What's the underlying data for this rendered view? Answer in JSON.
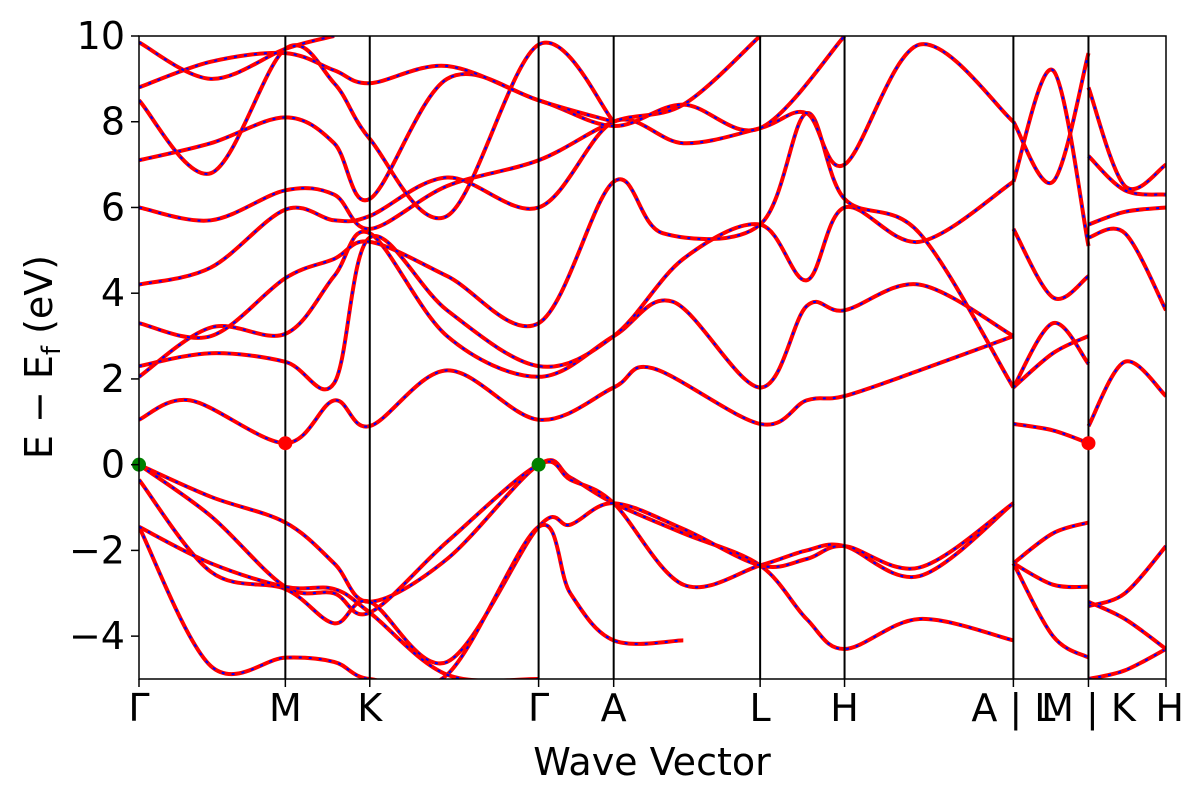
{
  "chart_data": {
    "type": "line",
    "title": "",
    "xlabel": "Wave Vector",
    "ylabel": "E − E_f (eV)",
    "ylabel_main": "E − E",
    "ylabel_sub": "f",
    "ylabel_unit": " (eV)",
    "ylim": [
      -5,
      10
    ],
    "xlim": [
      0,
      1
    ],
    "y_ticks": [
      -4,
      -2,
      0,
      2,
      4,
      6,
      8,
      10
    ],
    "y_tick_labels": [
      "−4",
      "−2",
      "0",
      "2",
      "4",
      "6",
      "8",
      "10"
    ],
    "grid": false,
    "legend": "none",
    "high_symmetry_points": [
      {
        "label": "Γ",
        "x": 0.0
      },
      {
        "label": "M",
        "x": 0.1425
      },
      {
        "label": "K",
        "x": 0.2247
      },
      {
        "label": "Γ",
        "x": 0.3891
      },
      {
        "label": "A",
        "x": 0.4622
      },
      {
        "label": "L",
        "x": 0.6048
      },
      {
        "label": "H",
        "x": 0.687
      },
      {
        "label": "A | L",
        "x": 0.8514
      },
      {
        "label": "M | K",
        "x": 0.9245
      },
      {
        "label": "H",
        "x": 1.0
      }
    ],
    "highlight_points": [
      {
        "x": 0.0,
        "y": 0.0,
        "color": "#008000"
      },
      {
        "x": 0.3891,
        "y": 0.0,
        "color": "#008000"
      },
      {
        "x": 0.1425,
        "y": 0.5,
        "color": "#ff0000"
      },
      {
        "x": 0.9245,
        "y": 0.5,
        "color": "#ff0000"
      }
    ],
    "series_style": {
      "line_color": "#ff0000",
      "dash_color": "#0000ff"
    },
    "series": [
      {
        "points": [
          [
            0.0,
            0.0
          ],
          [
            0.07,
            -0.75
          ],
          [
            0.1425,
            -1.35
          ],
          [
            0.19,
            -2.3
          ],
          [
            0.2247,
            -3.2
          ],
          [
            0.3,
            -2.2
          ],
          [
            0.3891,
            0.0
          ],
          [
            0.42,
            -0.3
          ],
          [
            0.4622,
            -0.9
          ],
          [
            0.53,
            -1.6
          ],
          [
            0.6048,
            -2.35
          ],
          [
            0.65,
            -3.6
          ],
          [
            0.687,
            -4.3
          ],
          [
            0.76,
            -3.6
          ],
          [
            0.8514,
            -4.1
          ]
        ]
      },
      {
        "points": [
          [
            0.0,
            0.0
          ],
          [
            0.07,
            -1.2
          ],
          [
            0.1425,
            -2.85
          ],
          [
            0.19,
            -3.0
          ],
          [
            0.2247,
            -3.45
          ],
          [
            0.3,
            -1.8
          ],
          [
            0.3891,
            0.0
          ],
          [
            0.42,
            -0.35
          ],
          [
            0.4622,
            -0.9
          ],
          [
            0.53,
            -2.8
          ],
          [
            0.6048,
            -2.35
          ],
          [
            0.65,
            -2.0
          ],
          [
            0.687,
            -1.9
          ],
          [
            0.76,
            -2.6
          ],
          [
            0.8514,
            -0.9
          ]
        ]
      },
      {
        "points": [
          [
            0.0,
            -0.35
          ],
          [
            0.07,
            -2.5
          ],
          [
            0.1425,
            -2.9
          ],
          [
            0.19,
            -3.7
          ],
          [
            0.2247,
            -3.2
          ],
          [
            0.3,
            -4.6
          ],
          [
            0.3891,
            -1.45
          ],
          [
            0.42,
            -1.4
          ],
          [
            0.4622,
            -0.9
          ],
          [
            0.53,
            -1.5
          ],
          [
            0.6048,
            -2.35
          ],
          [
            0.65,
            -2.2
          ],
          [
            0.687,
            -1.9
          ],
          [
            0.76,
            -2.4
          ],
          [
            0.8514,
            -0.9
          ]
        ]
      },
      {
        "points": [
          [
            0.0,
            -1.45
          ],
          [
            0.07,
            -4.7
          ],
          [
            0.1425,
            -4.5
          ],
          [
            0.19,
            -4.6
          ],
          [
            0.2247,
            -5.0
          ],
          [
            0.3,
            -4.9
          ],
          [
            0.3891,
            -1.45
          ],
          [
            0.42,
            -3.0
          ],
          [
            0.4622,
            -4.1
          ],
          [
            0.53,
            -4.1
          ]
        ]
      },
      {
        "points": [
          [
            0.0,
            -1.45
          ],
          [
            0.07,
            -2.3
          ],
          [
            0.1425,
            -2.85
          ],
          [
            0.19,
            -2.9
          ],
          [
            0.2247,
            -3.45
          ],
          [
            0.3,
            -4.9
          ],
          [
            0.3891,
            -5.0
          ]
        ]
      },
      {
        "points": [
          [
            0.0,
            1.05
          ],
          [
            0.05,
            1.5
          ],
          [
            0.1425,
            0.5
          ],
          [
            0.19,
            1.5
          ],
          [
            0.2247,
            0.9
          ],
          [
            0.3,
            2.2
          ],
          [
            0.3891,
            1.05
          ],
          [
            0.4622,
            1.8
          ],
          [
            0.5,
            2.25
          ],
          [
            0.6048,
            0.95
          ],
          [
            0.65,
            1.5
          ],
          [
            0.687,
            1.6
          ],
          [
            0.76,
            2.2
          ],
          [
            0.8514,
            3.0
          ]
        ]
      },
      {
        "points": [
          [
            0.0,
            2.05
          ],
          [
            0.07,
            3.2
          ],
          [
            0.1425,
            3.05
          ],
          [
            0.19,
            4.4
          ],
          [
            0.2247,
            5.4
          ],
          [
            0.3,
            3.0
          ],
          [
            0.3891,
            2.05
          ],
          [
            0.4622,
            3.0
          ],
          [
            0.52,
            3.8
          ],
          [
            0.6048,
            1.8
          ],
          [
            0.65,
            3.7
          ],
          [
            0.687,
            3.6
          ],
          [
            0.76,
            4.2
          ],
          [
            0.8514,
            3.0
          ]
        ]
      },
      {
        "points": [
          [
            0.0,
            2.3
          ],
          [
            0.07,
            2.6
          ],
          [
            0.1425,
            2.4
          ],
          [
            0.19,
            1.9
          ],
          [
            0.2247,
            5.3
          ],
          [
            0.3,
            3.6
          ],
          [
            0.3891,
            2.3
          ],
          [
            0.4622,
            3.0
          ],
          [
            0.53,
            4.8
          ],
          [
            0.6048,
            5.6
          ],
          [
            0.65,
            4.3
          ],
          [
            0.687,
            6.0
          ],
          [
            0.76,
            5.2
          ],
          [
            0.8514,
            6.6
          ]
        ]
      },
      {
        "points": [
          [
            0.0,
            3.3
          ],
          [
            0.07,
            3.0
          ],
          [
            0.1425,
            4.35
          ],
          [
            0.19,
            4.8
          ],
          [
            0.2247,
            5.2
          ],
          [
            0.3,
            4.4
          ],
          [
            0.3891,
            3.3
          ],
          [
            0.4622,
            6.6
          ],
          [
            0.51,
            5.4
          ],
          [
            0.6048,
            5.6
          ],
          [
            0.65,
            8.2
          ],
          [
            0.687,
            6.2
          ],
          [
            0.76,
            5.4
          ],
          [
            0.8514,
            1.8
          ]
        ]
      },
      {
        "points": [
          [
            0.0,
            4.2
          ],
          [
            0.07,
            4.6
          ],
          [
            0.1425,
            5.95
          ],
          [
            0.19,
            5.7
          ],
          [
            0.2247,
            5.8
          ],
          [
            0.3,
            6.7
          ],
          [
            0.3891,
            6.0
          ],
          [
            0.4622,
            8.0
          ],
          [
            0.53,
            7.5
          ],
          [
            0.6048,
            7.85
          ],
          [
            0.65,
            8.2
          ],
          [
            0.687,
            7.0
          ],
          [
            0.76,
            9.8
          ],
          [
            0.8514,
            8.0
          ]
        ]
      },
      {
        "points": [
          [
            0.0,
            6.0
          ],
          [
            0.07,
            5.7
          ],
          [
            0.1425,
            6.4
          ],
          [
            0.19,
            6.3
          ],
          [
            0.2247,
            5.5
          ],
          [
            0.3,
            6.5
          ],
          [
            0.3891,
            7.1
          ],
          [
            0.4622,
            8.0
          ],
          [
            0.53,
            8.4
          ],
          [
            0.6048,
            10.0
          ]
        ]
      },
      {
        "points": [
          [
            0.0,
            7.1
          ],
          [
            0.07,
            7.5
          ],
          [
            0.1425,
            8.1
          ],
          [
            0.19,
            7.5
          ],
          [
            0.2247,
            6.2
          ],
          [
            0.3,
            9.0
          ],
          [
            0.3891,
            8.5
          ],
          [
            0.4622,
            7.9
          ],
          [
            0.53,
            8.4
          ],
          [
            0.6048,
            7.85
          ],
          [
            0.687,
            10.0
          ]
        ]
      },
      {
        "points": [
          [
            0.0,
            8.5
          ],
          [
            0.07,
            6.8
          ],
          [
            0.1425,
            9.7
          ],
          [
            0.19,
            8.9
          ],
          [
            0.2247,
            7.6
          ],
          [
            0.3,
            5.8
          ],
          [
            0.3891,
            9.8
          ],
          [
            0.4622,
            8.0
          ]
        ]
      },
      {
        "points": [
          [
            0.0,
            8.8
          ],
          [
            0.07,
            9.4
          ],
          [
            0.1425,
            9.6
          ],
          [
            0.19,
            9.2
          ],
          [
            0.2247,
            8.9
          ],
          [
            0.3,
            9.3
          ],
          [
            0.3891,
            8.5
          ],
          [
            0.4622,
            8.0
          ]
        ]
      },
      {
        "points": [
          [
            0.0,
            9.85
          ],
          [
            0.07,
            9.0
          ],
          [
            0.1425,
            9.7
          ],
          [
            0.19,
            10.0
          ]
        ]
      },
      {
        "points": [
          [
            0.8514,
            -2.3
          ],
          [
            0.89,
            -1.6
          ],
          [
            0.9245,
            -1.35
          ]
        ]
      },
      {
        "points": [
          [
            0.8514,
            -2.3
          ],
          [
            0.89,
            -2.8
          ],
          [
            0.9245,
            -2.85
          ]
        ]
      },
      {
        "points": [
          [
            0.8514,
            -2.3
          ],
          [
            0.89,
            -4.0
          ],
          [
            0.9245,
            -4.5
          ]
        ]
      },
      {
        "points": [
          [
            0.8514,
            0.95
          ],
          [
            0.89,
            0.8
          ],
          [
            0.9245,
            0.5
          ]
        ]
      },
      {
        "points": [
          [
            0.8514,
            1.8
          ],
          [
            0.89,
            3.3
          ],
          [
            0.9245,
            2.35
          ]
        ]
      },
      {
        "points": [
          [
            0.8514,
            1.8
          ],
          [
            0.89,
            2.6
          ],
          [
            0.9245,
            3.0
          ]
        ]
      },
      {
        "points": [
          [
            0.8514,
            5.5
          ],
          [
            0.89,
            3.9
          ],
          [
            0.9245,
            4.4
          ]
        ]
      },
      {
        "points": [
          [
            0.8514,
            6.6
          ],
          [
            0.89,
            9.2
          ],
          [
            0.9245,
            5.1
          ]
        ]
      },
      {
        "points": [
          [
            0.8514,
            8.0
          ],
          [
            0.89,
            6.6
          ],
          [
            0.9245,
            9.6
          ]
        ]
      },
      {
        "points": [
          [
            0.9245,
            -5.0
          ],
          [
            0.96,
            -4.8
          ],
          [
            1.0,
            -4.3
          ]
        ]
      },
      {
        "points": [
          [
            0.9245,
            -3.3
          ],
          [
            0.96,
            -3.0
          ],
          [
            1.0,
            -1.9
          ]
        ]
      },
      {
        "points": [
          [
            0.9245,
            -3.2
          ],
          [
            0.96,
            -3.6
          ],
          [
            1.0,
            -4.3
          ]
        ]
      },
      {
        "points": [
          [
            0.9245,
            0.9
          ],
          [
            0.96,
            2.4
          ],
          [
            1.0,
            1.6
          ]
        ]
      },
      {
        "points": [
          [
            0.9245,
            5.3
          ],
          [
            0.96,
            5.4
          ],
          [
            1.0,
            3.6
          ]
        ]
      },
      {
        "points": [
          [
            0.9245,
            5.6
          ],
          [
            0.96,
            5.9
          ],
          [
            1.0,
            6.0
          ]
        ]
      },
      {
        "points": [
          [
            0.9245,
            7.2
          ],
          [
            0.96,
            6.4
          ],
          [
            1.0,
            6.3
          ]
        ]
      },
      {
        "points": [
          [
            0.9245,
            8.8
          ],
          [
            0.96,
            6.5
          ],
          [
            1.0,
            7.0
          ]
        ]
      }
    ]
  }
}
